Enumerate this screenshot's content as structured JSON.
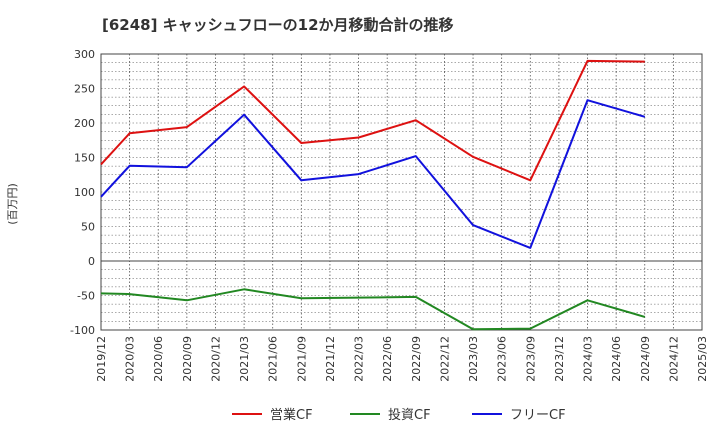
{
  "chart_data": {
    "type": "line",
    "title": "[6248]  キャッシュフローの12か月移動合計の推移",
    "ylabel": "(百万円)",
    "xlabel": "",
    "ylim": [
      -100,
      300
    ],
    "yticks": [
      300,
      250,
      200,
      150,
      100,
      50,
      0,
      -50,
      -100
    ],
    "categories": [
      "2019/12",
      "2020/03",
      "2020/06",
      "2020/09",
      "2020/12",
      "2021/03",
      "2021/06",
      "2021/09",
      "2021/12",
      "2022/03",
      "2022/06",
      "2022/09",
      "2022/12",
      "2023/03",
      "2023/06",
      "2023/09",
      "2023/12",
      "2024/03",
      "2024/06",
      "2024/09",
      "2024/12",
      "2025/03"
    ],
    "grid": true,
    "legend_position": "bottom",
    "series": [
      {
        "name": "営業CF",
        "color": "#dd1111",
        "x": [
          "2019/12",
          "2020/03",
          "2020/09",
          "2021/03",
          "2021/09",
          "2022/03",
          "2022/09",
          "2023/03",
          "2023/09",
          "2024/03",
          "2024/09"
        ],
        "values": [
          140,
          185,
          194,
          253,
          171,
          179,
          204,
          151,
          117,
          290,
          289
        ]
      },
      {
        "name": "投資CF",
        "color": "#228822",
        "x": [
          "2019/12",
          "2020/03",
          "2020/09",
          "2021/03",
          "2021/09",
          "2022/03",
          "2022/09",
          "2023/03",
          "2023/09",
          "2024/03",
          "2024/09"
        ],
        "values": [
          -47,
          -48,
          -57,
          -41,
          -54,
          -53,
          -52,
          -99,
          -98,
          -57,
          -81
        ]
      },
      {
        "name": "フリーCF",
        "color": "#1111dd",
        "x": [
          "2019/12",
          "2020/03",
          "2020/09",
          "2021/03",
          "2021/09",
          "2022/03",
          "2022/09",
          "2023/03",
          "2023/09",
          "2024/03",
          "2024/09"
        ],
        "values": [
          93,
          138,
          136,
          212,
          117,
          126,
          152,
          52,
          19,
          233,
          209
        ]
      }
    ]
  }
}
